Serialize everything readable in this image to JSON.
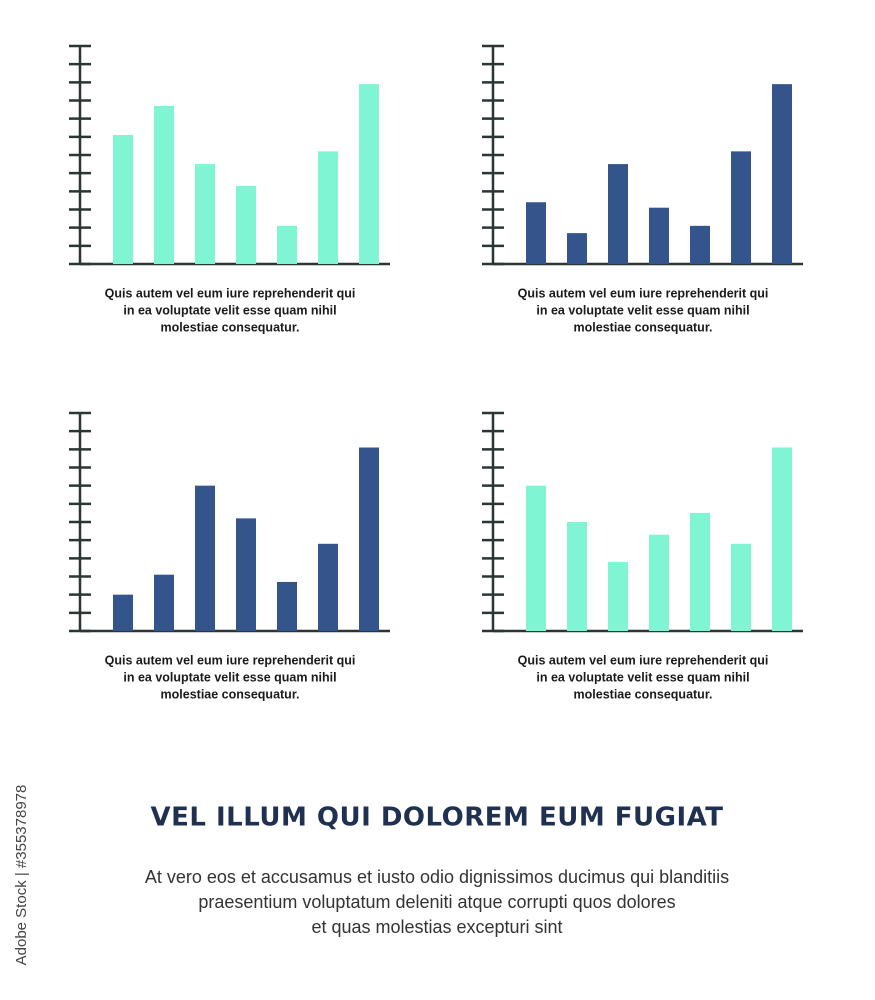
{
  "chart_data": [
    {
      "type": "bar",
      "color": "#7ff5d4",
      "categories": [
        null,
        null,
        null,
        null,
        null,
        null,
        null
      ],
      "values": [
        7.1,
        8.7,
        5.5,
        4.3,
        2.1,
        6.2,
        9.9
      ],
      "ylim": [
        0,
        12
      ],
      "yticks": [
        0,
        1,
        2,
        3,
        4,
        5,
        6,
        7,
        8,
        9,
        10,
        11,
        12
      ],
      "caption": [
        "Quis autem vel eum iure reprehenderit qui",
        "in ea voluptate velit esse quam nihil",
        "molestiae consequatur."
      ]
    },
    {
      "type": "bar",
      "color": "#34558b",
      "categories": [
        null,
        null,
        null,
        null,
        null,
        null,
        null
      ],
      "values": [
        3.4,
        1.7,
        5.5,
        3.1,
        2.1,
        6.2,
        9.9
      ],
      "ylim": [
        0,
        12
      ],
      "yticks": [
        0,
        1,
        2,
        3,
        4,
        5,
        6,
        7,
        8,
        9,
        10,
        11,
        12
      ],
      "caption": [
        "Quis autem vel eum iure reprehenderit qui",
        "in ea voluptate velit esse quam nihil",
        "molestiae consequatur."
      ]
    },
    {
      "type": "bar",
      "color": "#34558b",
      "categories": [
        null,
        null,
        null,
        null,
        null,
        null,
        null
      ],
      "values": [
        2.0,
        3.1,
        8.0,
        6.2,
        2.7,
        4.8,
        10.1
      ],
      "ylim": [
        0,
        12
      ],
      "yticks": [
        0,
        1,
        2,
        3,
        4,
        5,
        6,
        7,
        8,
        9,
        10,
        11,
        12
      ],
      "caption": [
        "Quis autem vel eum iure reprehenderit qui",
        "in ea voluptate velit esse quam nihil",
        "molestiae consequatur."
      ]
    },
    {
      "type": "bar",
      "color": "#7ff5d4",
      "categories": [
        null,
        null,
        null,
        null,
        null,
        null,
        null
      ],
      "values": [
        8.0,
        6.0,
        3.8,
        5.3,
        6.5,
        4.8,
        10.1
      ],
      "ylim": [
        0,
        12
      ],
      "yticks": [
        0,
        1,
        2,
        3,
        4,
        5,
        6,
        7,
        8,
        9,
        10,
        11,
        12
      ],
      "caption": [
        "Quis autem vel eum iure reprehenderit qui",
        "in ea voluptate velit esse quam nihil",
        "molestiae consequatur."
      ]
    }
  ],
  "heading": "VEL ILLUM QUI DOLOREM EUM FUGIAT",
  "body": [
    "At vero eos et accusamus et iusto odio dignissimos ducimus qui blanditiis",
    "praesentium voluptatum deleniti atque corrupti quos dolores",
    "et quas molestias excepturi sint"
  ],
  "watermark": "Adobe Stock | #355378978"
}
